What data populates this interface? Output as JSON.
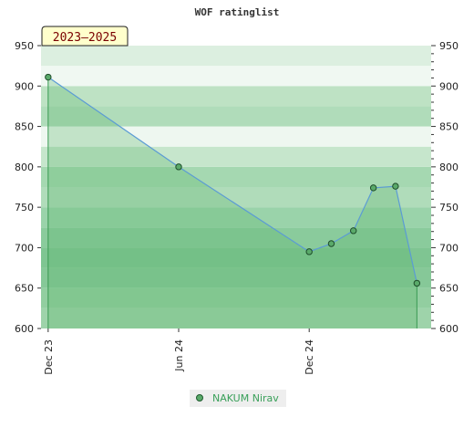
{
  "chart_data": {
    "type": "area",
    "title": "WOF ratinglist",
    "badge": "2023–2025",
    "x": [
      "2023-12-01",
      "2024-06-01",
      "2024-12-01",
      "2025-01-01",
      "2025-02-01",
      "2025-03-01",
      "2025-04-01",
      "2025-05-01"
    ],
    "xticks": [
      "Dec 23",
      "Jun 24",
      "Dec 24"
    ],
    "series": [
      {
        "name": "NAKUM Nirav",
        "values": [
          911,
          800,
          695,
          705,
          721,
          774,
          776,
          656
        ]
      }
    ],
    "ylim": [
      600,
      950
    ],
    "yticks": [
      600,
      650,
      700,
      750,
      800,
      850,
      900,
      950
    ],
    "grid": true,
    "legend": "bottom-center",
    "colors": {
      "line": "#5b9bd5",
      "marker": "#5aaa6a",
      "legend_text": "#3aa05a",
      "badge_bg": "#ffffcc",
      "badge_text": "#7a0000"
    }
  }
}
